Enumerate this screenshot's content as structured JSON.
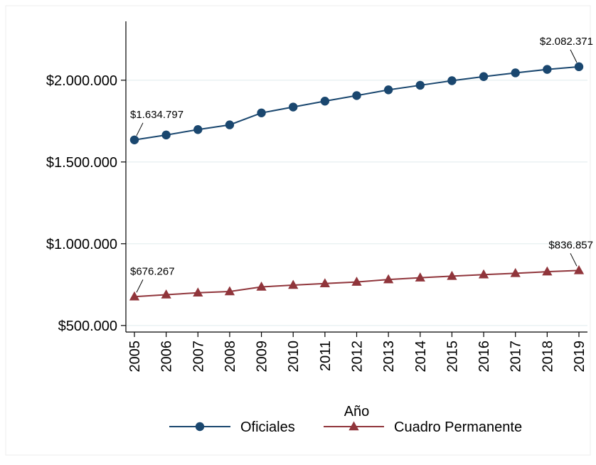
{
  "chart_data": {
    "type": "line",
    "title": "",
    "xlabel": "Año",
    "ylabel": "",
    "x": [
      2005,
      2006,
      2007,
      2008,
      2009,
      2010,
      2011,
      2012,
      2013,
      2014,
      2015,
      2016,
      2017,
      2018,
      2019
    ],
    "x_tick_labels": [
      "2005",
      "2006",
      "2007",
      "2008",
      "2009",
      "2010",
      "2011",
      "2012",
      "2013",
      "2014",
      "2015",
      "2016",
      "2017",
      "2018",
      "2019"
    ],
    "ylim": [
      460000,
      2360000
    ],
    "y_ticks": [
      500000,
      1000000,
      1500000,
      2000000
    ],
    "y_tick_labels": [
      "$500.000",
      "$1.000.000",
      "$1.500.000",
      "$2.000.000"
    ],
    "grid": "horizontal",
    "legend_position": "bottom",
    "series": [
      {
        "name": "Oficiales",
        "marker": "circle",
        "color": "#1a476f",
        "values": [
          1634797,
          1665000,
          1698000,
          1727000,
          1800000,
          1836000,
          1872000,
          1906000,
          1941000,
          1969000,
          1997000,
          2022000,
          2045000,
          2066000,
          2082371
        ]
      },
      {
        "name": "Cuadro Permanente",
        "marker": "triangle",
        "color": "#90353b",
        "values": [
          676267,
          688000,
          700000,
          708000,
          736000,
          747000,
          757000,
          766000,
          781000,
          792000,
          802000,
          811000,
          819000,
          829000,
          836857
        ]
      }
    ],
    "annotations": [
      {
        "text": "$1.634.797",
        "series": 0,
        "index": 0
      },
      {
        "text": "$2.082.371",
        "series": 0,
        "index": 14
      },
      {
        "text": "$676.267",
        "series": 1,
        "index": 0
      },
      {
        "text": "$836.857",
        "series": 1,
        "index": 14
      }
    ]
  }
}
